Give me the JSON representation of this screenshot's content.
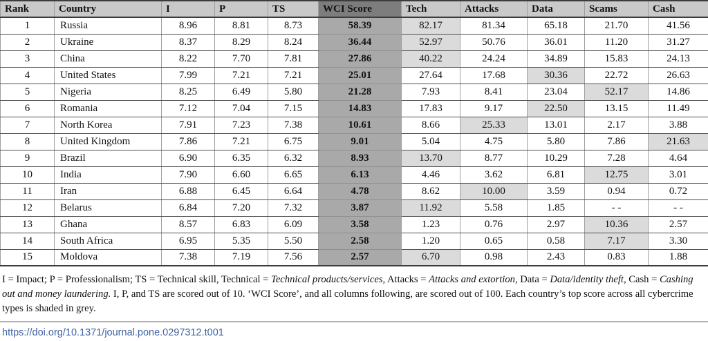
{
  "table": {
    "columns": [
      {
        "key": "rank",
        "label": "Rank"
      },
      {
        "key": "country",
        "label": "Country"
      },
      {
        "key": "i",
        "label": "I"
      },
      {
        "key": "p",
        "label": "P"
      },
      {
        "key": "ts",
        "label": "TS"
      },
      {
        "key": "wci",
        "label": "WCI Score"
      },
      {
        "key": "tech",
        "label": "Tech"
      },
      {
        "key": "attacks",
        "label": "Attacks"
      },
      {
        "key": "data",
        "label": "Data"
      },
      {
        "key": "scams",
        "label": "Scams"
      },
      {
        "key": "cash",
        "label": "Cash"
      }
    ],
    "rows": [
      {
        "rank": "1",
        "country": "Russia",
        "i": "8.96",
        "p": "8.81",
        "ts": "8.73",
        "wci": "58.39",
        "tech": "82.17",
        "attacks": "81.34",
        "data": "65.18",
        "scams": "21.70",
        "cash": "41.56",
        "top": "tech"
      },
      {
        "rank": "2",
        "country": "Ukraine",
        "i": "8.37",
        "p": "8.29",
        "ts": "8.24",
        "wci": "36.44",
        "tech": "52.97",
        "attacks": "50.76",
        "data": "36.01",
        "scams": "11.20",
        "cash": "31.27",
        "top": "tech"
      },
      {
        "rank": "3",
        "country": "China",
        "i": "8.22",
        "p": "7.70",
        "ts": "7.81",
        "wci": "27.86",
        "tech": "40.22",
        "attacks": "24.24",
        "data": "34.89",
        "scams": "15.83",
        "cash": "24.13",
        "top": "tech"
      },
      {
        "rank": "4",
        "country": "United States",
        "i": "7.99",
        "p": "7.21",
        "ts": "7.21",
        "wci": "25.01",
        "tech": "27.64",
        "attacks": "17.68",
        "data": "30.36",
        "scams": "22.72",
        "cash": "26.63",
        "top": "data"
      },
      {
        "rank": "5",
        "country": "Nigeria",
        "i": "8.25",
        "p": "6.49",
        "ts": "5.80",
        "wci": "21.28",
        "tech": "7.93",
        "attacks": "8.41",
        "data": "23.04",
        "scams": "52.17",
        "cash": "14.86",
        "top": "scams"
      },
      {
        "rank": "6",
        "country": "Romania",
        "i": "7.12",
        "p": "7.04",
        "ts": "7.15",
        "wci": "14.83",
        "tech": "17.83",
        "attacks": "9.17",
        "data": "22.50",
        "scams": "13.15",
        "cash": "11.49",
        "top": "data"
      },
      {
        "rank": "7",
        "country": "North Korea",
        "i": "7.91",
        "p": "7.23",
        "ts": "7.38",
        "wci": "10.61",
        "tech": "8.66",
        "attacks": "25.33",
        "data": "13.01",
        "scams": "2.17",
        "cash": "3.88",
        "top": "attacks"
      },
      {
        "rank": "8",
        "country": "United Kingdom",
        "i": "7.86",
        "p": "7.21",
        "ts": "6.75",
        "wci": "9.01",
        "tech": "5.04",
        "attacks": "4.75",
        "data": "5.80",
        "scams": "7.86",
        "cash": "21.63",
        "top": "cash"
      },
      {
        "rank": "9",
        "country": "Brazil",
        "i": "6.90",
        "p": "6.35",
        "ts": "6.32",
        "wci": "8.93",
        "tech": "13.70",
        "attacks": "8.77",
        "data": "10.29",
        "scams": "7.28",
        "cash": "4.64",
        "top": "tech"
      },
      {
        "rank": "10",
        "country": "India",
        "i": "7.90",
        "p": "6.60",
        "ts": "6.65",
        "wci": "6.13",
        "tech": "4.46",
        "attacks": "3.62",
        "data": "6.81",
        "scams": "12.75",
        "cash": "3.01",
        "top": "scams"
      },
      {
        "rank": "11",
        "country": "Iran",
        "i": "6.88",
        "p": "6.45",
        "ts": "6.64",
        "wci": "4.78",
        "tech": "8.62",
        "attacks": "10.00",
        "data": "3.59",
        "scams": "0.94",
        "cash": "0.72",
        "top": "attacks"
      },
      {
        "rank": "12",
        "country": "Belarus",
        "i": "6.84",
        "p": "7.20",
        "ts": "7.32",
        "wci": "3.87",
        "tech": "11.92",
        "attacks": "5.58",
        "data": "1.85",
        "scams": "- -",
        "cash": "- -",
        "top": "tech"
      },
      {
        "rank": "13",
        "country": "Ghana",
        "i": "8.57",
        "p": "6.83",
        "ts": "6.09",
        "wci": "3.58",
        "tech": "1.23",
        "attacks": "0.76",
        "data": "2.97",
        "scams": "10.36",
        "cash": "2.57",
        "top": "scams"
      },
      {
        "rank": "14",
        "country": "South Africa",
        "i": "6.95",
        "p": "5.35",
        "ts": "5.50",
        "wci": "2.58",
        "tech": "1.20",
        "attacks": "0.65",
        "data": "0.58",
        "scams": "7.17",
        "cash": "3.30",
        "top": "scams"
      },
      {
        "rank": "15",
        "country": "Moldova",
        "i": "7.38",
        "p": "7.19",
        "ts": "7.56",
        "wci": "2.57",
        "tech": "6.70",
        "attacks": "0.98",
        "data": "2.43",
        "scams": "0.83",
        "cash": "1.88",
        "top": "tech"
      }
    ]
  },
  "caption": {
    "segments": [
      {
        "text": "I = Impact; P = Professionalism; TS = Technical skill, Technical = ",
        "italic": false
      },
      {
        "text": "Technical products/services",
        "italic": true
      },
      {
        "text": ", Attacks = ",
        "italic": false
      },
      {
        "text": "Attacks and extortion",
        "italic": true
      },
      {
        "text": ", Data = ",
        "italic": false
      },
      {
        "text": "Data/identity theft",
        "italic": true
      },
      {
        "text": ", Cash = ",
        "italic": false
      },
      {
        "text": "Cashing out and money laundering.",
        "italic": true
      },
      {
        "text": " I, P, and TS are scored out of 10. ‘WCI Score’, and all columns following, are scored out of 100. Each country’s top score across all cybercrime types is shaded in grey.",
        "italic": false
      }
    ]
  },
  "footer": {
    "doi_link": "https://doi.org/10.1371/journal.pone.0297312.t001"
  },
  "colors": {
    "header_bg": "#c9c9c9",
    "wci_header_bg": "#7d7d7d",
    "wci_cell_bg": "#a9a9a9",
    "top_score_bg": "#dbdbdb",
    "link": "#3f63a3"
  }
}
